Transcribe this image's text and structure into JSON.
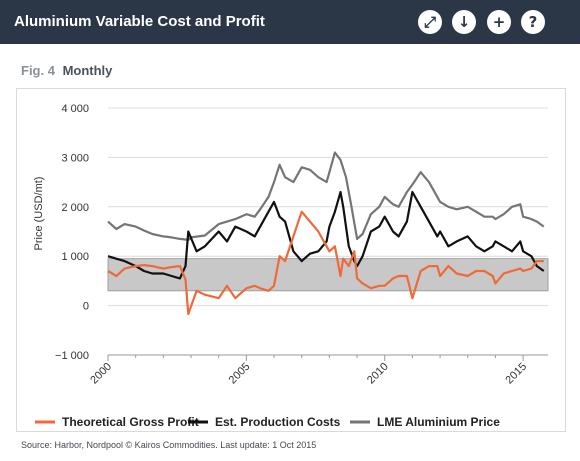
{
  "header": {
    "title": "Aluminium Variable Cost and Profit",
    "icons": [
      "expand-icon",
      "download-icon",
      "plus-icon",
      "help-icon"
    ],
    "background": "#2b3746"
  },
  "figure": {
    "number": "Fig. 4",
    "title": "Monthly"
  },
  "source": "Source: Harbor, Nordpool © Kairos Commodities. Last update: 1 Oct 2015",
  "chart_data": {
    "type": "line",
    "ylabel": "Price (USD/mt)",
    "ylim": [
      -1000,
      4000
    ],
    "xlim": [
      2000,
      2015.9
    ],
    "y_ticks": [
      {
        "value": -1000,
        "label": "−1 000"
      },
      {
        "value": 0,
        "label": "0"
      },
      {
        "value": 1000,
        "label": "1 000"
      },
      {
        "value": 2000,
        "label": "2 000"
      },
      {
        "value": 3000,
        "label": "3 000"
      },
      {
        "value": 4000,
        "label": "4 000"
      }
    ],
    "x_ticks": [
      {
        "value": 2000,
        "label": "2000"
      },
      {
        "value": 2005,
        "label": "2005"
      },
      {
        "value": 2010,
        "label": "2010"
      },
      {
        "value": 2015,
        "label": "2015"
      }
    ],
    "band": {
      "y_low": 300,
      "y_high": 950,
      "color": "#c8c8c8"
    },
    "legend_position": "bottom",
    "series": [
      {
        "name": "LME Aluminium Price",
        "color": "#757575",
        "x": [
          2000,
          2000.3,
          2000.6,
          2001,
          2001.3,
          2001.6,
          2002,
          2002.3,
          2002.6,
          2002.9,
          2003,
          2003.5,
          2004,
          2004.3,
          2004.6,
          2005,
          2005.3,
          2005.5,
          2005.8,
          2006,
          2006.2,
          2006.4,
          2006.7,
          2007,
          2007.3,
          2007.6,
          2007.9,
          2008,
          2008.2,
          2008.4,
          2008.6,
          2008.8,
          2009,
          2009.2,
          2009.5,
          2009.8,
          2010,
          2010.3,
          2010.5,
          2010.8,
          2011,
          2011.3,
          2011.6,
          2011.9,
          2012,
          2012.3,
          2012.6,
          2013,
          2013.3,
          2013.6,
          2013.9,
          2014,
          2014.3,
          2014.6,
          2014.9,
          2015,
          2015.3,
          2015.5,
          2015.75
        ],
        "y": [
          1700,
          1550,
          1650,
          1600,
          1520,
          1450,
          1400,
          1380,
          1350,
          1330,
          1380,
          1420,
          1650,
          1700,
          1750,
          1850,
          1800,
          1950,
          2200,
          2500,
          2850,
          2600,
          2500,
          2800,
          2750,
          2600,
          2500,
          2700,
          3100,
          2950,
          2600,
          2000,
          1350,
          1450,
          1850,
          2000,
          2200,
          2050,
          2000,
          2300,
          2450,
          2700,
          2500,
          2200,
          2100,
          2000,
          1950,
          2000,
          1900,
          1800,
          1800,
          1750,
          1850,
          2000,
          2050,
          1800,
          1750,
          1700,
          1600
        ]
      },
      {
        "name": "Est. Production Costs",
        "color": "#111111",
        "x": [
          2000,
          2000.3,
          2000.6,
          2001,
          2001.3,
          2001.6,
          2002,
          2002.3,
          2002.6,
          2002.8,
          2002.9,
          2003.2,
          2003.5,
          2004,
          2004.3,
          2004.6,
          2005,
          2005.3,
          2005.5,
          2005.8,
          2006,
          2006.2,
          2006.4,
          2006.7,
          2007,
          2007.3,
          2007.6,
          2007.9,
          2008,
          2008.2,
          2008.4,
          2008.5,
          2008.7,
          2008.9,
          2009,
          2009.2,
          2009.5,
          2009.8,
          2010,
          2010.3,
          2010.5,
          2010.8,
          2011,
          2011.3,
          2011.6,
          2011.9,
          2012,
          2012.3,
          2012.6,
          2013,
          2013.3,
          2013.6,
          2013.9,
          2014,
          2014.3,
          2014.6,
          2014.9,
          2015,
          2015.3,
          2015.5,
          2015.75
        ],
        "y": [
          1000,
          950,
          900,
          800,
          700,
          650,
          650,
          600,
          550,
          800,
          1500,
          1100,
          1200,
          1500,
          1300,
          1600,
          1500,
          1400,
          1600,
          1900,
          2100,
          1800,
          1700,
          1100,
          900,
          1050,
          1100,
          1300,
          1600,
          1900,
          2300,
          2000,
          1200,
          900,
          800,
          1000,
          1500,
          1600,
          1800,
          1500,
          1400,
          1700,
          2300,
          2000,
          1700,
          1400,
          1500,
          1200,
          1300,
          1400,
          1200,
          1100,
          1200,
          1300,
          1200,
          1100,
          1300,
          1100,
          1000,
          800,
          700
        ]
      },
      {
        "name": "Theoretical Gross Profit",
        "color": "#ee6a3a",
        "x": [
          2000,
          2000.3,
          2000.6,
          2001,
          2001.3,
          2001.6,
          2002,
          2002.3,
          2002.6,
          2002.8,
          2002.9,
          2003.2,
          2003.5,
          2004,
          2004.3,
          2004.6,
          2005,
          2005.3,
          2005.5,
          2005.8,
          2006,
          2006.2,
          2006.4,
          2006.7,
          2007,
          2007.3,
          2007.6,
          2007.9,
          2008,
          2008.2,
          2008.4,
          2008.5,
          2008.7,
          2008.9,
          2009,
          2009.2,
          2009.5,
          2009.8,
          2010,
          2010.3,
          2010.5,
          2010.8,
          2011,
          2011.3,
          2011.6,
          2011.9,
          2012,
          2012.3,
          2012.6,
          2013,
          2013.3,
          2013.6,
          2013.9,
          2014,
          2014.3,
          2014.6,
          2014.9,
          2015,
          2015.3,
          2015.5,
          2015.75
        ],
        "y": [
          700,
          600,
          750,
          800,
          820,
          800,
          750,
          780,
          800,
          530,
          -170,
          300,
          220,
          150,
          400,
          150,
          350,
          400,
          350,
          300,
          400,
          1000,
          900,
          1400,
          1900,
          1700,
          1500,
          1200,
          1100,
          1200,
          600,
          950,
          800,
          1100,
          550,
          450,
          350,
          400,
          400,
          550,
          600,
          600,
          150,
          700,
          800,
          800,
          600,
          800,
          650,
          600,
          700,
          700,
          600,
          450,
          650,
          700,
          750,
          700,
          750,
          900,
          900
        ]
      }
    ]
  }
}
